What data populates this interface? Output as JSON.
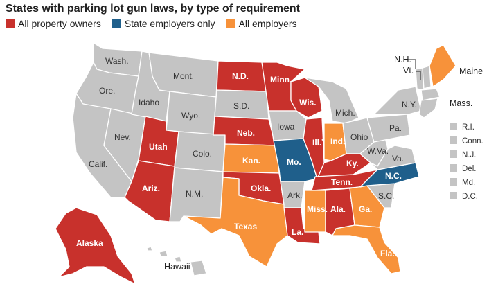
{
  "title": "States with parking lot gun laws, by type of requirement",
  "legend": [
    {
      "key": "all_property",
      "label": "All property owners",
      "color": "#c8312c"
    },
    {
      "key": "state_employers",
      "label": "State employers only",
      "color": "#1f5f8b"
    },
    {
      "key": "all_employers",
      "label": "All employers",
      "color": "#f7923a"
    }
  ],
  "none_color": "#c4c4c4",
  "states": {
    "wash": "Wash.",
    "ore": "Ore.",
    "calif": "Calif.",
    "nev": "Nev.",
    "idaho": "Idaho",
    "mont": "Mont.",
    "wyo": "Wyo.",
    "utah": "Utah",
    "colo": "Colo.",
    "ariz": "Ariz.",
    "nm": "N.M.",
    "nd": "N.D.",
    "sd": "S.D.",
    "neb": "Neb.",
    "kan": "Kan.",
    "okla": "Okla.",
    "texas": "Texas",
    "minn": "Minn.",
    "iowa": "Iowa",
    "mo": "Mo.",
    "ark": "Ark.",
    "la": "La.",
    "wis": "Wis.",
    "ill": "Ill.",
    "ind": "Ind.",
    "mich": "Mich.",
    "ohio": "Ohio",
    "ky": "Ky.",
    "tenn": "Tenn.",
    "miss": "Miss.",
    "ala": "Ala.",
    "ga": "Ga.",
    "fla": "Fla.",
    "sc": "S.C.",
    "nc": "N.C.",
    "va": "Va.",
    "wva": "W.Va.",
    "pa": "Pa.",
    "ny": "N.Y.",
    "vt": "Vt.",
    "nh": "N.H.",
    "maine": "Maine",
    "mass": "Mass.",
    "alaska": "Alaska",
    "hawaii": "Hawaii"
  },
  "ill_note": "*",
  "small_states": [
    "R.I.",
    "Conn.",
    "N.J.",
    "Del.",
    "Md.",
    "D.C."
  ],
  "categories": {
    "utah": "all_property",
    "ariz": "all_property",
    "nd": "all_property",
    "neb": "all_property",
    "minn": "all_property",
    "okla": "all_property",
    "wis": "all_property",
    "ill": "all_property",
    "ky": "all_property",
    "tenn": "all_property",
    "ala": "all_property",
    "la": "all_property",
    "alaska": "all_property",
    "mo": "state_employers",
    "nc": "state_employers",
    "kan": "all_employers",
    "texas": "all_employers",
    "ind": "all_employers",
    "miss": "all_employers",
    "ga": "all_employers",
    "fla": "all_employers",
    "maine": "all_employers"
  }
}
